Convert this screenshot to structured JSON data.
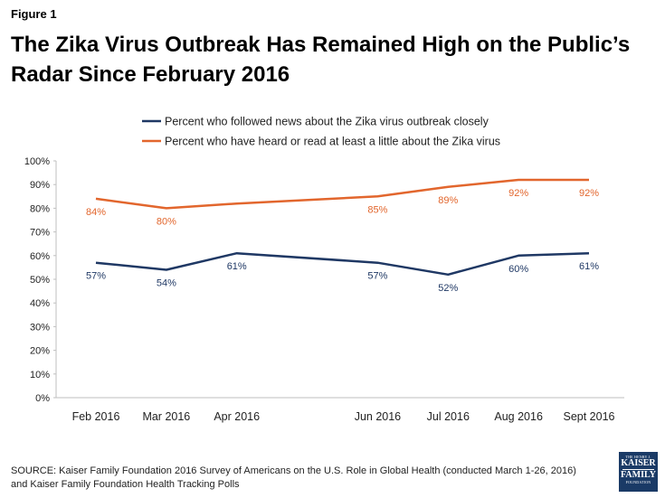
{
  "figure_label": "Figure 1",
  "title": "The Zika Virus Outbreak Has Remained High on the Public’s Radar Since February 2016",
  "source_lines": [
    "SOURCE: Kaiser Family Foundation 2016 Survey of Americans on the U.S. Role in Global Health (conducted March 1-26, 2016)",
    "and Kaiser Family Foundation Health Tracking Polls"
  ],
  "logo": {
    "line1": "THE HENRY J.",
    "line2": "KAISER",
    "line3": "FAMILY",
    "line4": "FOUNDATION"
  },
  "chart_data": {
    "type": "line",
    "title": "The Zika Virus Outbreak Has Remained High on the Public’s Radar Since February 2016",
    "xlabel": "",
    "ylabel": "",
    "ylim": [
      0,
      100
    ],
    "yticks": [
      "0%",
      "10%",
      "20%",
      "30%",
      "40%",
      "50%",
      "60%",
      "70%",
      "80%",
      "90%",
      "100%"
    ],
    "categories": [
      "Feb 2016",
      "Mar 2016",
      "Apr 2016",
      "Jun 2016",
      "Jul 2016",
      "Aug 2016",
      "Sept 2016"
    ],
    "time_months": [
      0,
      1,
      2,
      4,
      5,
      6,
      7
    ],
    "legend_position": "top-center",
    "grid": false,
    "series": [
      {
        "name": "Percent who followed news about the Zika virus outbreak closely",
        "color": "#1f3864",
        "values": [
          57,
          54,
          61,
          57,
          52,
          60,
          61
        ],
        "labels": [
          "57%",
          "54%",
          "61%",
          "57%",
          "52%",
          "60%",
          "61%"
        ],
        "label_shown": [
          true,
          true,
          true,
          true,
          true,
          true,
          true
        ],
        "label_position": "below"
      },
      {
        "name": "Percent who have heard or read at least a little about the Zika virus",
        "color": "#e2662d",
        "values": [
          84,
          80,
          82,
          85,
          89,
          92,
          92
        ],
        "labels": [
          "84%",
          "80%",
          "",
          "85%",
          "89%",
          "92%",
          "92%"
        ],
        "label_shown": [
          true,
          true,
          false,
          true,
          true,
          true,
          true
        ],
        "label_position": "below"
      }
    ]
  }
}
